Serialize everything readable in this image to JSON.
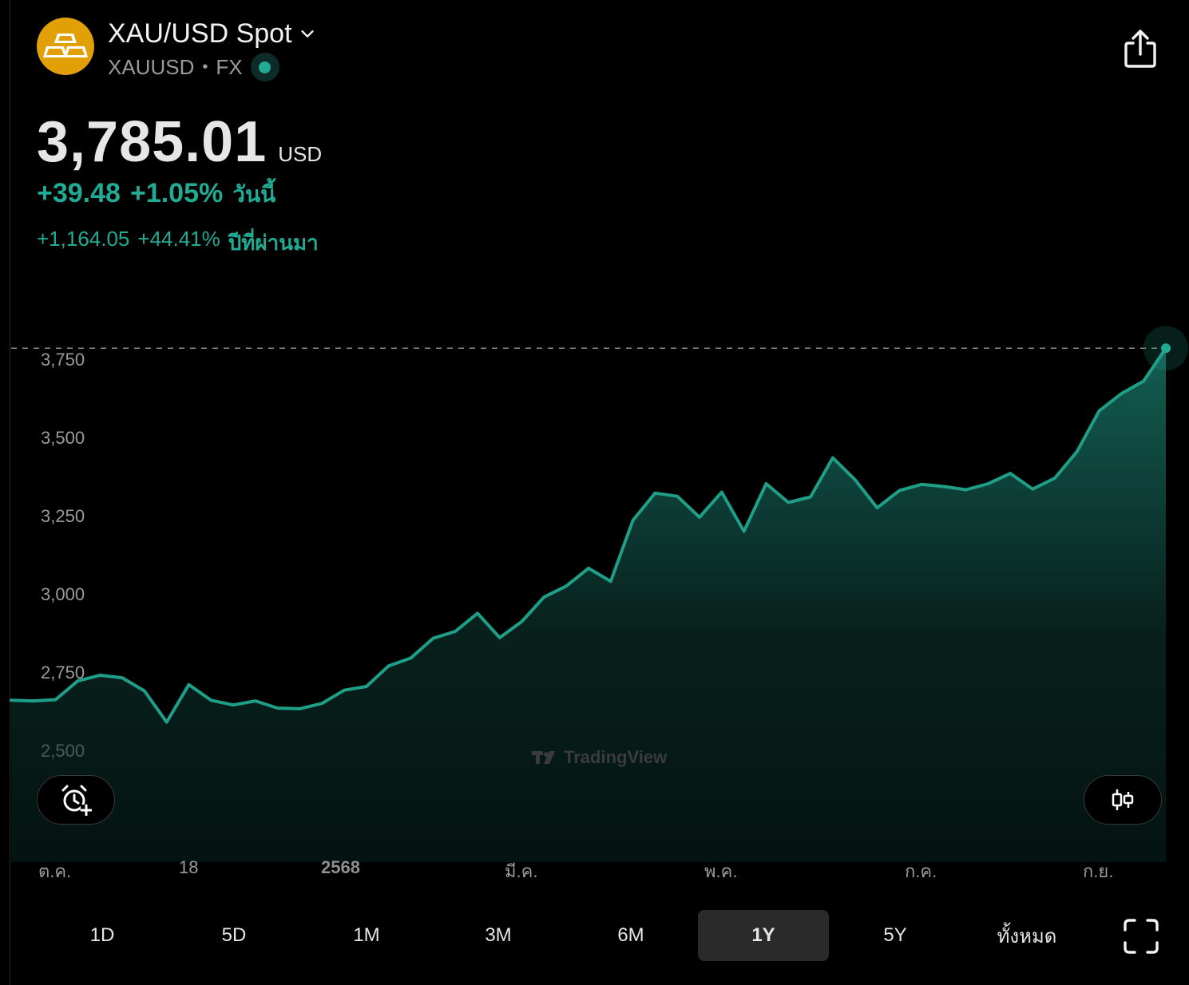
{
  "header": {
    "title": "XAU/USD Spot",
    "symbol": "XAUUSD",
    "separator": "•",
    "market": "FX"
  },
  "price": {
    "value": "3,785.01",
    "currency": "USD",
    "today_change": "+39.48",
    "today_percent": "+1.05%",
    "today_label": "วันนี้",
    "year_change": "+1,164.05",
    "year_percent": "+44.41%",
    "year_label": "ปีที่ผ่านมา"
  },
  "watermark": "TradingView",
  "colors": {
    "accent": "#22ab94",
    "logo": "#e2a007",
    "background": "#000000"
  },
  "icons": {
    "logo": "gold-bars-icon",
    "dropdown": "chevron-down-icon",
    "share": "share-icon",
    "alert": "alarm-add-icon",
    "chart_type": "candlestick-icon",
    "fullscreen": "fullscreen-icon"
  },
  "chart_data": {
    "type": "area",
    "y_ticks": [
      "3,750",
      "3,500",
      "3,250",
      "3,000",
      "2,750",
      "2,500"
    ],
    "x_labels": [
      "ต.ค.",
      "18",
      "2568",
      "มี.ค.",
      "พ.ค.",
      "ก.ค.",
      "ก.ย."
    ],
    "ylim": [
      2500,
      3750
    ],
    "last_value": 3785.01,
    "series": [
      {
        "values": [
          2660,
          2658,
          2662,
          2722,
          2740,
          2732,
          2690,
          2590,
          2710,
          2660,
          2645,
          2658,
          2635,
          2633,
          2650,
          2692,
          2704,
          2770,
          2795,
          2858,
          2880,
          2938,
          2860,
          2912,
          2990,
          3025,
          3082,
          3040,
          3235,
          3322,
          3312,
          3245,
          3325,
          3200,
          3352,
          3292,
          3310,
          3435,
          3365,
          3275,
          3330,
          3350,
          3343,
          3333,
          3352,
          3385,
          3335,
          3370,
          3455,
          3585,
          3640,
          3680,
          3785
        ]
      }
    ]
  },
  "time_ranges": [
    {
      "label": "1D",
      "active": false
    },
    {
      "label": "5D",
      "active": false
    },
    {
      "label": "1M",
      "active": false
    },
    {
      "label": "3M",
      "active": false
    },
    {
      "label": "6M",
      "active": false
    },
    {
      "label": "1Y",
      "active": true
    },
    {
      "label": "5Y",
      "active": false
    },
    {
      "label": "ทั้งหมด",
      "active": false
    }
  ]
}
